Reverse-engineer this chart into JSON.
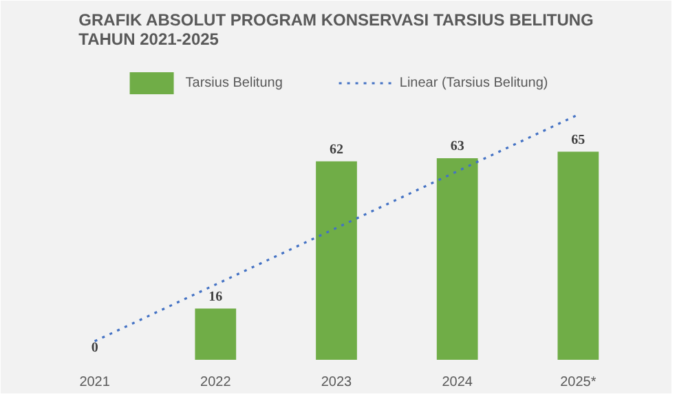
{
  "chart_data": {
    "type": "bar",
    "title": "GRAFIK ABSOLUT PROGRAM KONSERVASI TARSIUS BELITUNG\nTAHUN 2021-2025",
    "categories": [
      "2021",
      "2022",
      "2023",
      "2024",
      "2025*"
    ],
    "series": [
      {
        "name": "Tarsius Belitung",
        "color": "#70ad47",
        "values": [
          0,
          16,
          62,
          63,
          65
        ],
        "value_labels": [
          "0",
          "16",
          "62",
          "63",
          "65"
        ]
      },
      {
        "name": "Linear (Tarsius Belitung)",
        "type": "line",
        "color": "#4472c4",
        "line_style": "dotted",
        "values": [
          5.8,
          23.5,
          41.2,
          58.9,
          76.6
        ]
      }
    ],
    "ylim": [
      0,
      95
    ],
    "legend": "top",
    "grid": false,
    "tick_labels": "x"
  }
}
